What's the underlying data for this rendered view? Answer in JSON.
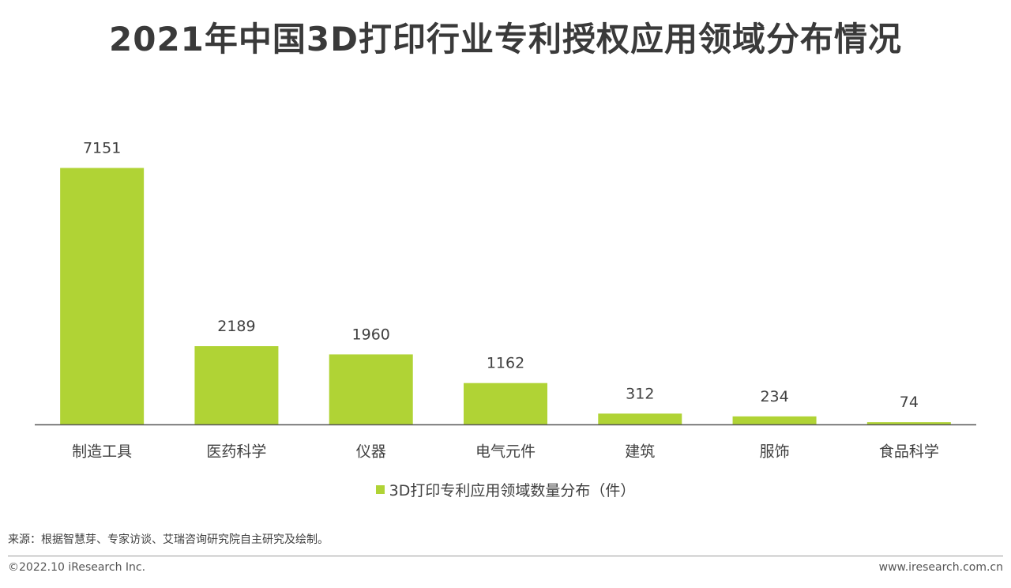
{
  "title": "2021年中国3D打印行业专利授权应用领域分布情况",
  "chart_data": {
    "type": "bar",
    "categories": [
      "制造工具",
      "医药科学",
      "仪器",
      "电气元件",
      "建筑",
      "服饰",
      "食品科学"
    ],
    "series": [
      {
        "name": "3D打印专利应用领域数量分布（件）",
        "values": [
          7151,
          2189,
          1960,
          1162,
          312,
          234,
          74
        ],
        "color": "#b0d335"
      }
    ],
    "data_labels": true,
    "legend_position": "bottom",
    "grid": false
  },
  "colors": {
    "bar": "#b0d335",
    "axis": "#595959",
    "text": "#404040"
  },
  "legend": {
    "label": "3D打印专利应用领域数量分布（件）"
  },
  "source": "来源：根据智慧芽、专家访谈、艾瑞咨询研究院自主研究及绘制。",
  "footer": {
    "copyright": "©2022.10 iResearch Inc.",
    "website": "www.iresearch.com.cn"
  }
}
